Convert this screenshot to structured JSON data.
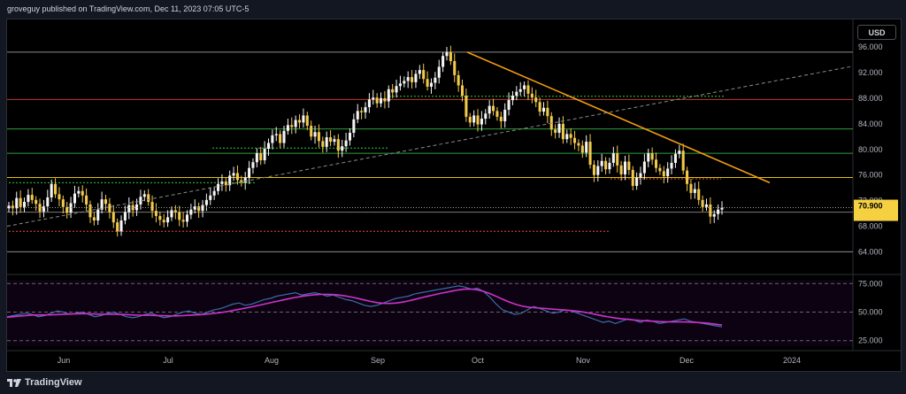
{
  "header": {
    "published": "groveguy published on TradingView.com, Dec 11, 2023 07:05 UTC-5"
  },
  "toolbar": {
    "currency": "USD"
  },
  "footer": {
    "brand": "TradingView"
  },
  "colors": {
    "up": "#f5f5f5",
    "down": "#f2c94c",
    "trendline": "#f39c12",
    "support": "#8b8b8b",
    "rsi": "#3a6ea5",
    "rsi_ma": "#cc33cc",
    "last_price_bg": "#f5d142"
  },
  "chart_data": [
    {
      "type": "candlestick",
      "title": "",
      "x_tick_labels": [
        "Jun",
        "Jul",
        "Aug",
        "Sep",
        "Oct",
        "Nov",
        "Dec",
        "2024"
      ],
      "y_tick_labels": [
        "64.000",
        "68.000",
        "72.000",
        "76.000",
        "80.000",
        "84.000",
        "88.000",
        "92.000",
        "96.000"
      ],
      "ylim": [
        60.6,
        100.3
      ],
      "grid": false,
      "close_series": [
        71.2,
        70.8,
        72.4,
        71.0,
        71.8,
        72.9,
        72.1,
        71.5,
        70.3,
        71.1,
        72.5,
        74.6,
        73.0,
        72.2,
        71.0,
        70.1,
        71.6,
        73.1,
        73.5,
        72.8,
        71.4,
        69.4,
        68.9,
        70.6,
        72.2,
        71.5,
        70.2,
        68.6,
        67.2,
        68.9,
        70.2,
        71.3,
        70.5,
        71.4,
        72.6,
        73.0,
        71.8,
        70.4,
        69.6,
        69.0,
        68.6,
        69.4,
        70.5,
        70.2,
        69.0,
        68.7,
        69.8,
        70.6,
        71.1,
        70.4,
        71.3,
        72.1,
        72.8,
        73.5,
        74.6,
        75.0,
        74.4,
        75.9,
        76.3,
        75.2,
        74.8,
        75.6,
        77.1,
        78.0,
        79.4,
        78.3,
        80.1,
        81.0,
        82.2,
        82.4,
        81.0,
        82.9,
        83.8,
        83.5,
        84.6,
        84.2,
        85.3,
        83.7,
        82.0,
        82.7,
        81.3,
        80.4,
        81.9,
        81.2,
        81.6,
        79.8,
        80.5,
        81.4,
        82.6,
        84.7,
        86.0,
        85.8,
        86.6,
        87.8,
        88.1,
        87.2,
        88.0,
        87.5,
        89.4,
        88.9,
        89.9,
        90.3,
        90.7,
        91.3,
        90.5,
        91.8,
        92.4,
        91.0,
        89.8,
        90.4,
        91.2,
        92.9,
        94.6,
        95.2,
        93.8,
        91.6,
        90.0,
        88.4,
        85.1,
        84.2,
        85.3,
        83.9,
        84.8,
        85.6,
        86.8,
        86.0,
        85.1,
        84.4,
        86.2,
        87.7,
        88.4,
        89.0,
        89.4,
        90.0,
        88.7,
        88.1,
        87.4,
        85.9,
        86.5,
        85.2,
        83.1,
        82.6,
        84.0,
        81.6,
        82.4,
        81.8,
        81.0,
        80.6,
        79.5,
        81.2,
        77.6,
        76.0,
        77.4,
        78.2,
        76.9,
        77.9,
        79.4,
        77.5,
        76.1,
        78.1,
        76.8,
        74.3,
        75.6,
        76.3,
        78.1,
        79.4,
        78.4,
        77.1,
        76.6,
        75.8,
        77.0,
        77.9,
        79.3,
        79.8,
        76.7,
        74.6,
        73.2,
        73.8,
        72.1,
        71.0,
        71.4,
        69.5,
        69.9,
        70.6,
        70.9
      ]
    },
    {
      "type": "line",
      "title": "",
      "y_tick_labels": [
        "25.000",
        "50.000",
        "75.000"
      ],
      "ylim": [
        17,
        83
      ],
      "series": [
        {
          "values": [
            46,
            47,
            48,
            49,
            48,
            46,
            47,
            49,
            51,
            50,
            48,
            49,
            50,
            48,
            46,
            47,
            49,
            50,
            48,
            46,
            45,
            46,
            48,
            49,
            47,
            45,
            46,
            48,
            50,
            51,
            49,
            48,
            50,
            52,
            53,
            55,
            57,
            58,
            56,
            57,
            59,
            61,
            62,
            64,
            65,
            66,
            67,
            65,
            66,
            67,
            66,
            64,
            65,
            63,
            61,
            60,
            58,
            56,
            55,
            56,
            58,
            60,
            62,
            63,
            64,
            66,
            67,
            68,
            69,
            70,
            71,
            72,
            73,
            72,
            70,
            71,
            68,
            63,
            57,
            52,
            50,
            48,
            49,
            52,
            55,
            53,
            51,
            49,
            50,
            52,
            51,
            49,
            47,
            45,
            43,
            41,
            42,
            40,
            42,
            44,
            43,
            41,
            43,
            42,
            40,
            41,
            42,
            43,
            44,
            42,
            41,
            40,
            39,
            38,
            37
          ]
        },
        {
          "values": [
            45.5,
            46.0,
            46.6,
            47.0,
            47.4,
            47.5,
            47.5,
            47.6,
            47.8,
            48.1,
            48.3,
            48.5,
            48.7,
            48.6,
            48.3,
            48.1,
            48.1,
            48.1,
            48.0,
            47.8,
            47.5,
            47.3,
            47.2,
            47.2,
            47.0,
            46.8,
            46.7,
            46.7,
            46.9,
            47.2,
            47.5,
            47.8,
            48.3,
            48.8,
            49.5,
            50.4,
            51.4,
            52.5,
            53.5,
            54.6,
            55.8,
            57.0,
            58.2,
            59.4,
            60.6,
            61.8,
            62.9,
            63.8,
            64.6,
            65.2,
            65.5,
            65.6,
            65.4,
            64.9,
            64.1,
            63.1,
            61.9,
            60.6,
            59.3,
            58.3,
            57.7,
            57.6,
            57.9,
            58.7,
            59.8,
            61.1,
            62.5,
            63.8,
            65.1,
            66.3,
            67.4,
            68.5,
            69.5,
            70.1,
            70.2,
            69.6,
            68.2,
            66.2,
            63.8,
            61.3,
            59.0,
            57.0,
            55.4,
            54.4,
            53.9,
            53.5,
            53.1,
            52.6,
            52.2,
            51.8,
            51.3,
            50.7,
            49.9,
            48.9,
            47.8,
            46.7,
            45.7,
            44.8,
            44.1,
            43.6,
            43.1,
            42.6,
            42.3,
            42.0,
            41.7,
            41.5,
            41.4,
            41.4,
            41.4,
            41.2,
            40.9,
            40.6,
            40.1,
            39.4,
            38.6
          ]
        }
      ]
    }
  ]
}
